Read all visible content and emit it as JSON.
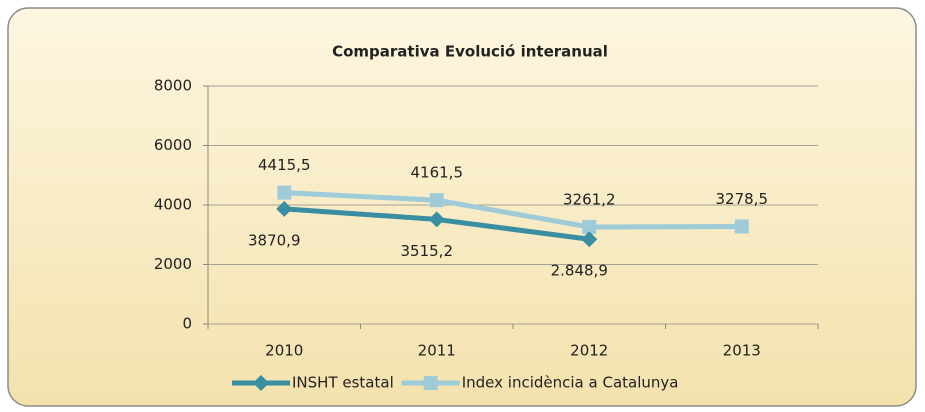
{
  "chart_data": {
    "type": "line",
    "title": "Comparativa Evolució interanual",
    "categories": [
      "2010",
      "2011",
      "2012",
      "2013"
    ],
    "series": [
      {
        "name": "INSHT estatal",
        "color": "#3a8ea2",
        "marker": "diamond",
        "values": [
          3870.9,
          3515.2,
          2848.9,
          null
        ],
        "value_labels": [
          "3870,9",
          "3515,2",
          "2.848,9",
          null
        ]
      },
      {
        "name": "Index incidència a Catalunya",
        "color": "#9fcbd9",
        "marker": "square",
        "values": [
          4415.5,
          4161.5,
          3261.2,
          3278.5
        ],
        "value_labels": [
          "4415,5",
          "4161,5",
          "3261,2",
          "3278,5"
        ]
      }
    ],
    "ylim": [
      0,
      8000
    ],
    "yticks": [
      0,
      2000,
      4000,
      6000,
      8000
    ],
    "grid": true,
    "legend": "bottom"
  }
}
